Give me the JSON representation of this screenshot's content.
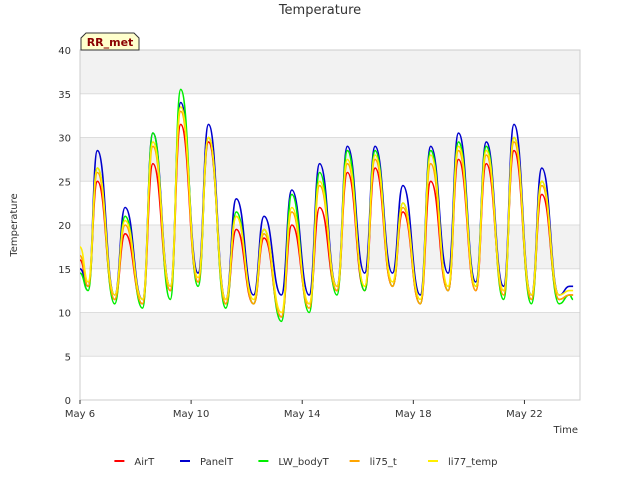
{
  "chart_data": {
    "type": "line",
    "title": "Temperature",
    "xlabel": "Time",
    "ylabel": "Temperature",
    "badge": "RR_met",
    "ylim": [
      0,
      40
    ],
    "yticks": [
      0,
      5,
      10,
      15,
      20,
      25,
      30,
      35,
      40
    ],
    "xlim": [
      "2024-05-06",
      "2024-05-24"
    ],
    "xticks": [
      {
        "date": "2024-05-06",
        "label": "May 6"
      },
      {
        "date": "2024-05-10",
        "label": "May 10"
      },
      {
        "date": "2024-05-14",
        "label": "May 14"
      },
      {
        "date": "2024-05-18",
        "label": "May 18"
      },
      {
        "date": "2024-05-22",
        "label": "May 22"
      }
    ],
    "grid": true,
    "legend_position": "bottom",
    "series": [
      {
        "name": "AirT",
        "color": "#ff0000",
        "x": [
          "2024-05-06T00:00",
          "2024-05-06T07:00",
          "2024-05-06T15:00",
          "2024-05-07T06:00",
          "2024-05-07T15:00",
          "2024-05-08T06:00",
          "2024-05-08T15:00",
          "2024-05-09T06:00",
          "2024-05-09T15:00",
          "2024-05-10T06:00",
          "2024-05-10T15:00",
          "2024-05-11T06:00",
          "2024-05-11T15:00",
          "2024-05-12T06:00",
          "2024-05-12T15:00",
          "2024-05-13T06:00",
          "2024-05-13T15:00",
          "2024-05-14T06:00",
          "2024-05-14T15:00",
          "2024-05-15T06:00",
          "2024-05-15T15:00",
          "2024-05-16T06:00",
          "2024-05-16T15:00",
          "2024-05-17T06:00",
          "2024-05-17T15:00",
          "2024-05-18T06:00",
          "2024-05-18T15:00",
          "2024-05-19T06:00",
          "2024-05-19T15:00",
          "2024-05-20T06:00",
          "2024-05-20T15:00",
          "2024-05-21T06:00",
          "2024-05-21T15:00",
          "2024-05-22T06:00",
          "2024-05-22T15:00",
          "2024-05-23T06:00",
          "2024-05-23T15:00",
          "2024-05-23T18:00"
        ],
        "y": [
          16,
          13,
          25,
          11.5,
          19,
          11,
          27,
          12.5,
          31.5,
          13.5,
          29.5,
          11,
          19.5,
          11,
          18.5,
          9.5,
          20,
          11,
          22,
          12.5,
          26,
          12.5,
          26.5,
          13,
          21.5,
          11,
          25,
          12.5,
          27.5,
          12.5,
          27,
          12.5,
          28.5,
          11.5,
          23.5,
          11.5,
          12,
          12
        ]
      },
      {
        "name": "PanelT",
        "color": "#0000cd",
        "x": [
          "2024-05-06T00:00",
          "2024-05-06T07:00",
          "2024-05-06T15:00",
          "2024-05-07T06:00",
          "2024-05-07T15:00",
          "2024-05-08T06:00",
          "2024-05-08T15:00",
          "2024-05-09T06:00",
          "2024-05-09T15:00",
          "2024-05-10T06:00",
          "2024-05-10T15:00",
          "2024-05-11T06:00",
          "2024-05-11T15:00",
          "2024-05-12T06:00",
          "2024-05-12T15:00",
          "2024-05-13T06:00",
          "2024-05-13T15:00",
          "2024-05-14T06:00",
          "2024-05-14T15:00",
          "2024-05-15T06:00",
          "2024-05-15T15:00",
          "2024-05-16T06:00",
          "2024-05-16T15:00",
          "2024-05-17T06:00",
          "2024-05-17T15:00",
          "2024-05-18T06:00",
          "2024-05-18T15:00",
          "2024-05-19T06:00",
          "2024-05-19T15:00",
          "2024-05-20T06:00",
          "2024-05-20T15:00",
          "2024-05-21T06:00",
          "2024-05-21T15:00",
          "2024-05-22T06:00",
          "2024-05-22T15:00",
          "2024-05-23T06:00",
          "2024-05-23T15:00",
          "2024-05-23T18:00"
        ],
        "y": [
          15,
          13,
          28.5,
          12,
          22,
          11.5,
          30.5,
          13,
          34,
          14.5,
          31.5,
          11.5,
          23,
          12,
          21,
          12,
          24,
          12,
          27,
          13,
          29,
          14.5,
          29,
          14.5,
          24.5,
          12,
          29,
          14.5,
          30.5,
          13.5,
          29.5,
          13,
          31.5,
          12,
          26.5,
          12,
          13,
          13
        ]
      },
      {
        "name": "LW_bodyT",
        "color": "#00ee00",
        "x": [
          "2024-05-06T00:00",
          "2024-05-06T07:00",
          "2024-05-06T15:00",
          "2024-05-07T06:00",
          "2024-05-07T15:00",
          "2024-05-08T06:00",
          "2024-05-08T15:00",
          "2024-05-09T06:00",
          "2024-05-09T15:00",
          "2024-05-10T06:00",
          "2024-05-10T15:00",
          "2024-05-11T06:00",
          "2024-05-11T15:00",
          "2024-05-12T06:00",
          "2024-05-12T15:00",
          "2024-05-13T06:00",
          "2024-05-13T15:00",
          "2024-05-14T06:00",
          "2024-05-14T15:00",
          "2024-05-15T06:00",
          "2024-05-15T15:00",
          "2024-05-16T06:00",
          "2024-05-16T15:00",
          "2024-05-17T06:00",
          "2024-05-17T15:00",
          "2024-05-18T06:00",
          "2024-05-18T15:00",
          "2024-05-19T06:00",
          "2024-05-19T15:00",
          "2024-05-20T06:00",
          "2024-05-20T15:00",
          "2024-05-21T06:00",
          "2024-05-21T15:00",
          "2024-05-22T06:00",
          "2024-05-22T15:00",
          "2024-05-23T06:00",
          "2024-05-23T15:00",
          "2024-05-23T18:00"
        ],
        "y": [
          14.5,
          12.5,
          26.5,
          11,
          21,
          10.5,
          30.5,
          11.5,
          35.5,
          13,
          30,
          10.5,
          21.5,
          11,
          19.5,
          9,
          23.5,
          10,
          26,
          12,
          28.5,
          12.5,
          28.5,
          13,
          22.5,
          11,
          28.5,
          12.5,
          29.5,
          13,
          29,
          11.5,
          30,
          11,
          25,
          11,
          12,
          11.5
        ]
      },
      {
        "name": "li75_t",
        "color": "#ffa500",
        "x": [
          "2024-05-06T00:00",
          "2024-05-06T07:00",
          "2024-05-06T15:00",
          "2024-05-07T06:00",
          "2024-05-07T15:00",
          "2024-05-08T06:00",
          "2024-05-08T15:00",
          "2024-05-09T06:00",
          "2024-05-09T15:00",
          "2024-05-10T06:00",
          "2024-05-10T15:00",
          "2024-05-11T06:00",
          "2024-05-11T15:00",
          "2024-05-12T06:00",
          "2024-05-12T15:00",
          "2024-05-13T06:00",
          "2024-05-13T15:00",
          "2024-05-14T06:00",
          "2024-05-14T15:00",
          "2024-05-15T06:00",
          "2024-05-15T15:00",
          "2024-05-16T06:00",
          "2024-05-16T15:00",
          "2024-05-17T06:00",
          "2024-05-17T15:00",
          "2024-05-18T06:00",
          "2024-05-18T15:00",
          "2024-05-19T06:00",
          "2024-05-19T15:00",
          "2024-05-20T06:00",
          "2024-05-20T15:00",
          "2024-05-21T06:00",
          "2024-05-21T15:00",
          "2024-05-22T06:00",
          "2024-05-22T15:00",
          "2024-05-23T06:00",
          "2024-05-23T15:00",
          "2024-05-23T18:00"
        ],
        "y": [
          16.5,
          13,
          26,
          11.5,
          20,
          11,
          29,
          12.5,
          33,
          13.5,
          30,
          11,
          21,
          11,
          19,
          9.5,
          21.5,
          10.5,
          24.5,
          12.5,
          27,
          13,
          27.5,
          13,
          22,
          11,
          27,
          12.5,
          28.5,
          12.5,
          28,
          12,
          29.5,
          11.5,
          24.5,
          11.5,
          12,
          12
        ]
      },
      {
        "name": "li77_temp",
        "color": "#ffee00",
        "x": [
          "2024-05-06T00:00",
          "2024-05-06T07:00",
          "2024-05-06T15:00",
          "2024-05-07T06:00",
          "2024-05-07T15:00",
          "2024-05-08T06:00",
          "2024-05-08T15:00",
          "2024-05-09T06:00",
          "2024-05-09T15:00",
          "2024-05-10T06:00",
          "2024-05-10T15:00",
          "2024-05-11T06:00",
          "2024-05-11T15:00",
          "2024-05-12T06:00",
          "2024-05-12T15:00",
          "2024-05-13T06:00",
          "2024-05-13T15:00",
          "2024-05-14T06:00",
          "2024-05-14T15:00",
          "2024-05-15T06:00",
          "2024-05-15T15:00",
          "2024-05-16T06:00",
          "2024-05-16T15:00",
          "2024-05-17T06:00",
          "2024-05-17T15:00",
          "2024-05-18T06:00",
          "2024-05-18T15:00",
          "2024-05-19T06:00",
          "2024-05-19T15:00",
          "2024-05-20T06:00",
          "2024-05-20T15:00",
          "2024-05-21T06:00",
          "2024-05-21T15:00",
          "2024-05-22T06:00",
          "2024-05-22T15:00",
          "2024-05-23T06:00",
          "2024-05-23T15:00",
          "2024-05-23T18:00"
        ],
        "y": [
          17.5,
          13.5,
          26.5,
          12,
          20.5,
          11.5,
          29.5,
          13,
          33.5,
          14,
          30,
          11.5,
          21,
          11.5,
          19.5,
          10,
          22,
          11,
          25,
          13,
          27.5,
          13,
          28,
          13.5,
          22.5,
          11.5,
          28,
          13,
          29,
          13,
          28.5,
          12.5,
          30,
          12,
          25,
          12,
          12.5,
          12.5
        ]
      }
    ]
  }
}
